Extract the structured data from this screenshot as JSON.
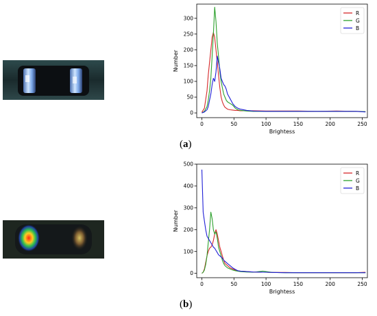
{
  "figure": {
    "panels": [
      {
        "letter": "a",
        "thumbnail": "component-with-bright-blue-white-ends"
      },
      {
        "letter": "b",
        "thumbnail": "component-with-red-yellow-hotspot"
      }
    ]
  },
  "chart_data": [
    {
      "type": "line",
      "xlabel": "Brightess",
      "ylabel": "Number",
      "xlim": [
        -8,
        258
      ],
      "ylim": [
        -15,
        345
      ],
      "xticks": [
        0,
        50,
        100,
        150,
        200,
        250
      ],
      "yticks": [
        0,
        50,
        100,
        150,
        200,
        250,
        300
      ],
      "legend": "top-right",
      "grid": false,
      "x": [
        0,
        4,
        8,
        10,
        12,
        14,
        16,
        18,
        20,
        22,
        24,
        26,
        28,
        30,
        32,
        34,
        36,
        38,
        40,
        44,
        48,
        52,
        56,
        60,
        70,
        80,
        100,
        120,
        150,
        180,
        210,
        240,
        255
      ],
      "series": [
        {
          "name": "R",
          "color": "#d62728",
          "values": [
            2,
            15,
            70,
            120,
            160,
            200,
            240,
            255,
            240,
            200,
            160,
            120,
            80,
            50,
            35,
            25,
            18,
            15,
            12,
            10,
            9,
            8,
            8,
            7,
            7,
            7,
            6,
            6,
            6,
            5,
            6,
            5,
            4
          ]
        },
        {
          "name": "G",
          "color": "#2ca02c",
          "values": [
            0,
            5,
            20,
            40,
            70,
            110,
            180,
            250,
            335,
            290,
            220,
            180,
            130,
            100,
            80,
            60,
            50,
            40,
            35,
            30,
            25,
            15,
            10,
            8,
            6,
            5,
            5,
            5,
            5,
            5,
            5,
            5,
            4
          ]
        },
        {
          "name": "B",
          "color": "#1f1fd6",
          "values": [
            0,
            3,
            10,
            20,
            40,
            60,
            90,
            110,
            100,
            130,
            180,
            160,
            140,
            110,
            100,
            90,
            85,
            75,
            60,
            45,
            30,
            20,
            15,
            12,
            8,
            6,
            5,
            5,
            5,
            5,
            5,
            5,
            3
          ]
        }
      ]
    },
    {
      "type": "line",
      "xlabel": "Brightess",
      "ylabel": "Number",
      "xlim": [
        -8,
        258
      ],
      "ylim": [
        -20,
        500
      ],
      "xticks": [
        0,
        50,
        100,
        150,
        200,
        250
      ],
      "yticks": [
        0,
        100,
        200,
        300,
        400,
        500
      ],
      "legend": "top-right",
      "grid": false,
      "x": [
        0,
        2,
        4,
        6,
        8,
        10,
        12,
        14,
        16,
        18,
        20,
        22,
        24,
        26,
        28,
        30,
        32,
        34,
        36,
        38,
        40,
        44,
        48,
        52,
        56,
        60,
        70,
        80,
        95,
        100,
        110,
        130,
        150,
        180,
        210,
        240,
        255
      ],
      "series": [
        {
          "name": "R",
          "color": "#d62728",
          "values": [
            0,
            5,
            20,
            50,
            80,
            100,
            115,
            120,
            130,
            150,
            180,
            200,
            180,
            150,
            120,
            100,
            80,
            60,
            45,
            40,
            35,
            25,
            20,
            15,
            12,
            10,
            8,
            6,
            5,
            5,
            4,
            4,
            3,
            3,
            3,
            3,
            5
          ]
        },
        {
          "name": "G",
          "color": "#2ca02c",
          "values": [
            0,
            5,
            15,
            40,
            80,
            140,
            200,
            280,
            250,
            200,
            180,
            190,
            160,
            120,
            100,
            80,
            60,
            45,
            35,
            30,
            25,
            20,
            15,
            12,
            10,
            8,
            6,
            5,
            10,
            8,
            4,
            3,
            3,
            3,
            3,
            3,
            3
          ]
        },
        {
          "name": "B",
          "color": "#1f1fd6",
          "values": [
            475,
            280,
            240,
            200,
            170,
            160,
            150,
            140,
            130,
            120,
            115,
            105,
            95,
            85,
            80,
            75,
            70,
            60,
            55,
            50,
            45,
            35,
            25,
            18,
            12,
            10,
            8,
            6,
            5,
            5,
            4,
            3,
            3,
            3,
            3,
            3,
            3
          ]
        }
      ]
    }
  ]
}
